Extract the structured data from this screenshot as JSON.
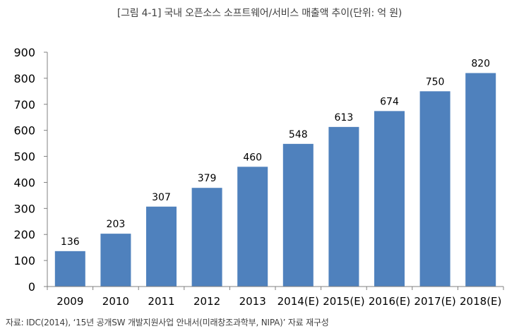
{
  "figure": {
    "title": "[그림 4-1] 국내 오픈소스 소프트웨어/서비스 매출액 추이(단위: 억 원)",
    "source": "자료: IDC(2014), ‘15년 공개SW 개발지원사업 안내서(미래창조과학부, NIPA)’ 자료 재구성"
  },
  "colors": {
    "bar": "#4F81BD",
    "axis": "#808080",
    "text": "#000000",
    "title_text": "#404040"
  },
  "chart_data": {
    "type": "bar",
    "title": "[그림 4-1] 국내 오픈소스 소프트웨어/서비스 매출액 추이(단위: 억 원)",
    "categories": [
      "2009",
      "2010",
      "2011",
      "2012",
      "2013",
      "2014(E)",
      "2015(E)",
      "2016(E)",
      "2017(E)",
      "2018(E)"
    ],
    "values": [
      136,
      203,
      307,
      379,
      460,
      548,
      613,
      674,
      750,
      820
    ],
    "data_labels": [
      "136",
      "203",
      "307",
      "379",
      "460",
      "548",
      "613",
      "674",
      "750",
      "820"
    ],
    "ylim": [
      0,
      900
    ],
    "yticks": [
      0,
      100,
      200,
      300,
      400,
      500,
      600,
      700,
      800,
      900
    ],
    "ytick_labels": [
      "0",
      "100",
      "200",
      "300",
      "400",
      "500",
      "600",
      "700",
      "800",
      "900"
    ],
    "xlabel": "",
    "ylabel": "",
    "grid": false,
    "legend": "none"
  }
}
